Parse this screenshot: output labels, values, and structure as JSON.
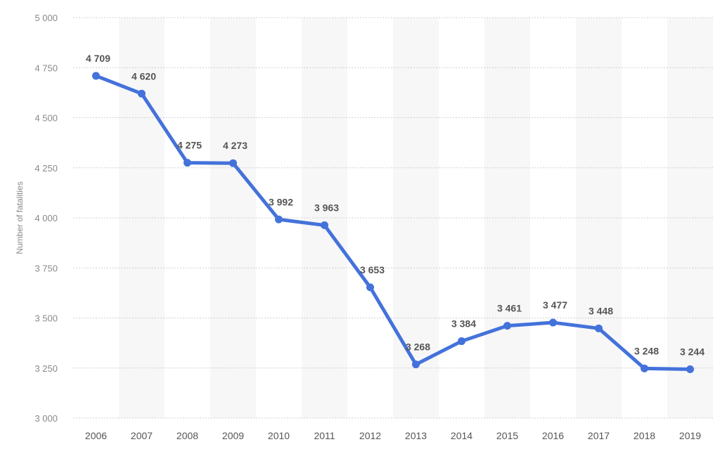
{
  "chart_data": {
    "type": "line",
    "title": "",
    "xlabel": "",
    "ylabel": "Number of fatalities",
    "ylim": [
      3000,
      5000
    ],
    "yticks": [
      3000,
      3250,
      3500,
      3750,
      4000,
      4250,
      4500,
      4750,
      5000
    ],
    "ytick_labels": [
      "3 000",
      "3 250",
      "3 500",
      "3 750",
      "4 000",
      "4 250",
      "4 500",
      "4 750",
      "5 000"
    ],
    "categories": [
      "2006",
      "2007",
      "2008",
      "2009",
      "2010",
      "2011",
      "2012",
      "2013",
      "2014",
      "2015",
      "2016",
      "2017",
      "2018",
      "2019"
    ],
    "values": [
      4709,
      4620,
      4275,
      4273,
      3992,
      3963,
      3653,
      3268,
      3384,
      3461,
      3477,
      3448,
      3248,
      3244
    ],
    "value_labels": [
      "4 709",
      "4 620",
      "4 275",
      "4 273",
      "3 992",
      "3 963",
      "3 653",
      "3 268",
      "3 384",
      "3 461",
      "3 477",
      "3 448",
      "3 248",
      "3 244"
    ],
    "grid": true,
    "line_color": "#4472db"
  }
}
